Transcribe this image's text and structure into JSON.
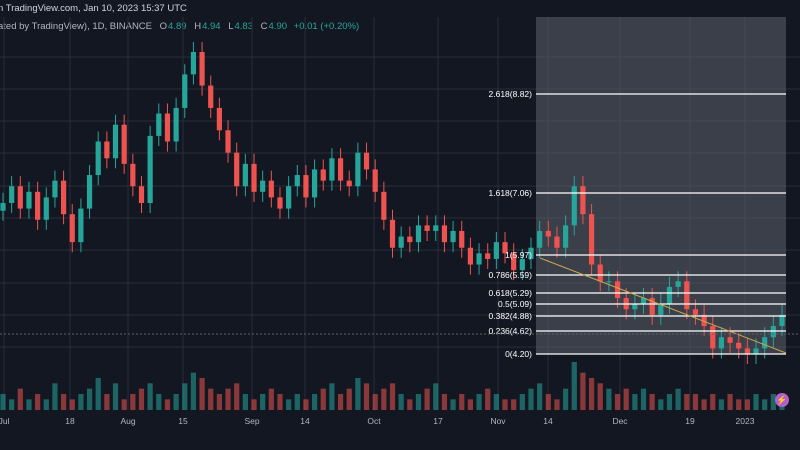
{
  "header": {
    "line1": "n TradingView.com, Jan 10, 2023 15:37 UTC",
    "line2_prefix": "ated by TradingView), 1D, BINANCE",
    "open_label": "O",
    "open_value": "4.89",
    "high_label": "H",
    "high_value": "4.94",
    "low_label": "L",
    "low_value": "4.83",
    "close_label": "C",
    "close_value": "4.90",
    "change": "+0.01 (+0.20%)"
  },
  "icons": {
    "lightning": "lightning-icon"
  },
  "colors": {
    "background": "#131722",
    "up": "#26a69a",
    "down": "#ef5350",
    "fib_zone": "#5d606b",
    "trendline": "#c9a84c",
    "grid": "#2a2e39"
  },
  "chart_data": {
    "type": "candlestick",
    "title": "",
    "xlabel": "",
    "ylabel": "",
    "ylim": [
      3.8,
      10.2
    ],
    "grid": true,
    "x_ticks": [
      "Jul",
      "18",
      "Aug",
      "15",
      "Sep",
      "14",
      "Oct",
      "17",
      "Nov",
      "14",
      "Dec",
      "19",
      "2023"
    ],
    "fib_levels": [
      {
        "label": "2.618(8.82)",
        "ratio": 2.618,
        "price": 8.82
      },
      {
        "label": "1.618(7.06)",
        "ratio": 1.618,
        "price": 7.06
      },
      {
        "label": "1(5.97)",
        "ratio": 1,
        "price": 5.97
      },
      {
        "label": "0.786(5.59)",
        "ratio": 0.786,
        "price": 5.59
      },
      {
        "label": "0.618(5.29)",
        "ratio": 0.618,
        "price": 5.29
      },
      {
        "label": "0.5(5.09)",
        "ratio": 0.5,
        "price": 5.09
      },
      {
        "label": "0.382(4.88)",
        "ratio": 0.382,
        "price": 4.88
      },
      {
        "label": "0.236(4.62)",
        "ratio": 0.236,
        "price": 4.62
      },
      {
        "label": "0(4.20)",
        "ratio": 0,
        "price": 4.2
      }
    ],
    "close_series": [
      6.9,
      7.2,
      6.8,
      7.1,
      6.6,
      7.0,
      7.3,
      6.7,
      6.2,
      6.8,
      7.4,
      8.0,
      7.7,
      8.3,
      7.6,
      7.2,
      6.9,
      8.1,
      8.5,
      8.0,
      8.6,
      9.2,
      9.6,
      9.0,
      8.6,
      8.2,
      7.8,
      7.2,
      7.6,
      7.1,
      7.3,
      7.0,
      6.8,
      7.2,
      7.4,
      7.0,
      7.5,
      7.3,
      7.7,
      7.3,
      7.2,
      7.8,
      7.5,
      7.1,
      6.6,
      6.1,
      6.3,
      6.2,
      6.5,
      6.4,
      6.5,
      6.2,
      6.4,
      6.1,
      5.8,
      6.0,
      5.9,
      6.2,
      6.0,
      5.7,
      5.9,
      6.1,
      6.4,
      6.3,
      6.1,
      6.5,
      7.2,
      6.7,
      5.8,
      5.5,
      5.5,
      5.2,
      5.0,
      5.1,
      5.2,
      4.9,
      5.1,
      5.4,
      5.5,
      5.0,
      4.9,
      4.7,
      4.3,
      4.5,
      4.4,
      4.3,
      4.2,
      4.3,
      4.5,
      4.7,
      4.9
    ],
    "volume_series": [
      3,
      2,
      4,
      2,
      3,
      2,
      5,
      3,
      2,
      3,
      4,
      6,
      3,
      5,
      2,
      3,
      4,
      5,
      3,
      2,
      3,
      5,
      7,
      6,
      4,
      3,
      4,
      5,
      3,
      2,
      3,
      4,
      3,
      2,
      3,
      2,
      3,
      4,
      5,
      3,
      4,
      6,
      5,
      3,
      4,
      5,
      3,
      2,
      3,
      4,
      5,
      3,
      2,
      3,
      2,
      3,
      4,
      3,
      2,
      2,
      3,
      4,
      5,
      3,
      2,
      4,
      9,
      7,
      6,
      5,
      4,
      3,
      4,
      3,
      4,
      3,
      2,
      3,
      4,
      3,
      3,
      2,
      3,
      2,
      3,
      2,
      2,
      3,
      2,
      3,
      2
    ]
  }
}
